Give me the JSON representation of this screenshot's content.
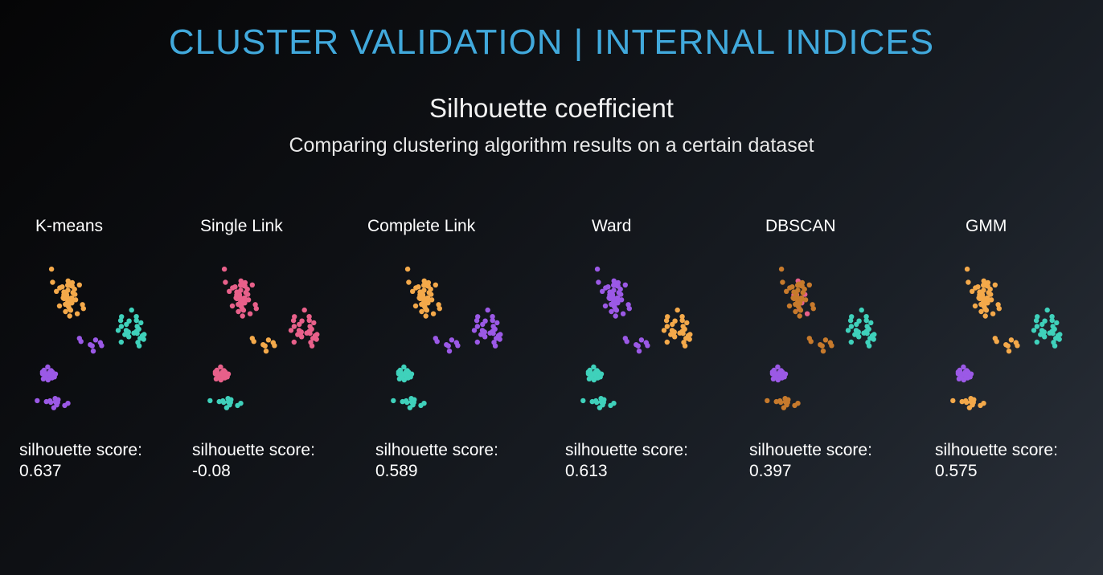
{
  "title": "CLUSTER VALIDATION | INTERNAL INDICES",
  "subtitle": "Silhouette coefficient",
  "caption": "Comparing clustering algorithm results on a certain dataset",
  "colors": {
    "orange": "#f4a94a",
    "purple": "#9b59e6",
    "teal": "#3fd1bb",
    "pink": "#e8608a",
    "brown": "#c77a2c",
    "title": "#41a9dc"
  },
  "panels": [
    {
      "name": "K-means",
      "score_label": "silhouette score:",
      "score": "0.637",
      "cluster_colors": {
        "A": "orange",
        "B": "teal",
        "C": "purple",
        "D": "purple",
        "N": "purple"
      }
    },
    {
      "name": "Single Link",
      "score_label": "silhouette score:",
      "score": "-0.08",
      "cluster_colors": {
        "A": "pink",
        "B": "pink",
        "C": "pink",
        "D": "teal",
        "N": "orange"
      }
    },
    {
      "name": "Complete Link",
      "score_label": "silhouette score:",
      "score": "0.589",
      "cluster_colors": {
        "A": "orange",
        "B": "purple",
        "C": "teal",
        "D": "teal",
        "N": "purple"
      }
    },
    {
      "name": "Ward",
      "score_label": "silhouette score:",
      "score": "0.613",
      "cluster_colors": {
        "A": "purple",
        "B": "orange",
        "C": "teal",
        "D": "teal",
        "N": "purple"
      }
    },
    {
      "name": "DBSCAN",
      "score_label": "silhouette score:",
      "score": "0.397",
      "cluster_colors": {
        "A": "brown",
        "B": "teal",
        "C": "purple",
        "D": "brown",
        "N": "brown",
        "A_core": "pink"
      }
    },
    {
      "name": "GMM",
      "score_label": "silhouette score:",
      "score": "0.575",
      "cluster_colors": {
        "A": "orange",
        "B": "teal",
        "C": "purple",
        "D": "orange",
        "N": "orange"
      }
    }
  ]
}
